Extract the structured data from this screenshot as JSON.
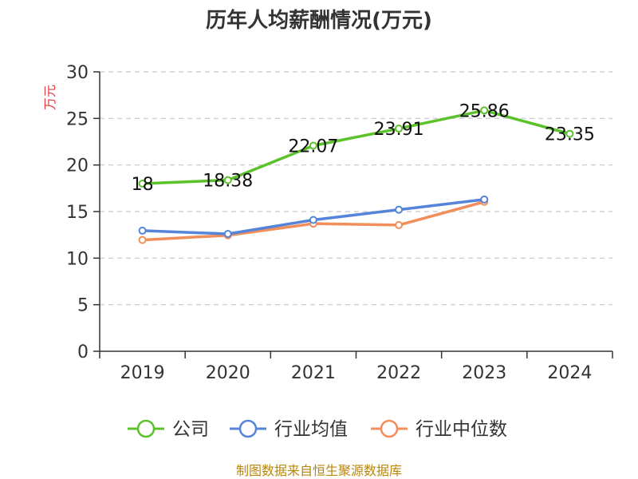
{
  "chart_data": {
    "type": "line",
    "title": "历年人均薪酬情况(万元)",
    "ylabel": "万元",
    "xlabel": "",
    "categories": [
      "2019",
      "2020",
      "2021",
      "2022",
      "2023",
      "2024"
    ],
    "ylim": [
      0,
      30
    ],
    "yticks": [
      0,
      5,
      10,
      15,
      20,
      25,
      30
    ],
    "grid": true,
    "legend_position": "bottom",
    "series": [
      {
        "name": "公司",
        "color": "#5cc22c",
        "values": [
          18,
          18.38,
          22.07,
          23.91,
          25.86,
          23.35
        ],
        "labels": [
          "18",
          "18.38",
          "22.07",
          "23.91",
          "25.86",
          "23.35"
        ]
      },
      {
        "name": "行业均值",
        "color": "#5584d8",
        "values": [
          12.95,
          12.6,
          14.1,
          15.2,
          16.3,
          null
        ]
      },
      {
        "name": "行业中位数",
        "color": "#f28e5a",
        "values": [
          11.95,
          12.45,
          13.7,
          13.55,
          16.05,
          null
        ]
      }
    ]
  },
  "footer": {
    "source": "制图数据来自恒生聚源数据库"
  }
}
